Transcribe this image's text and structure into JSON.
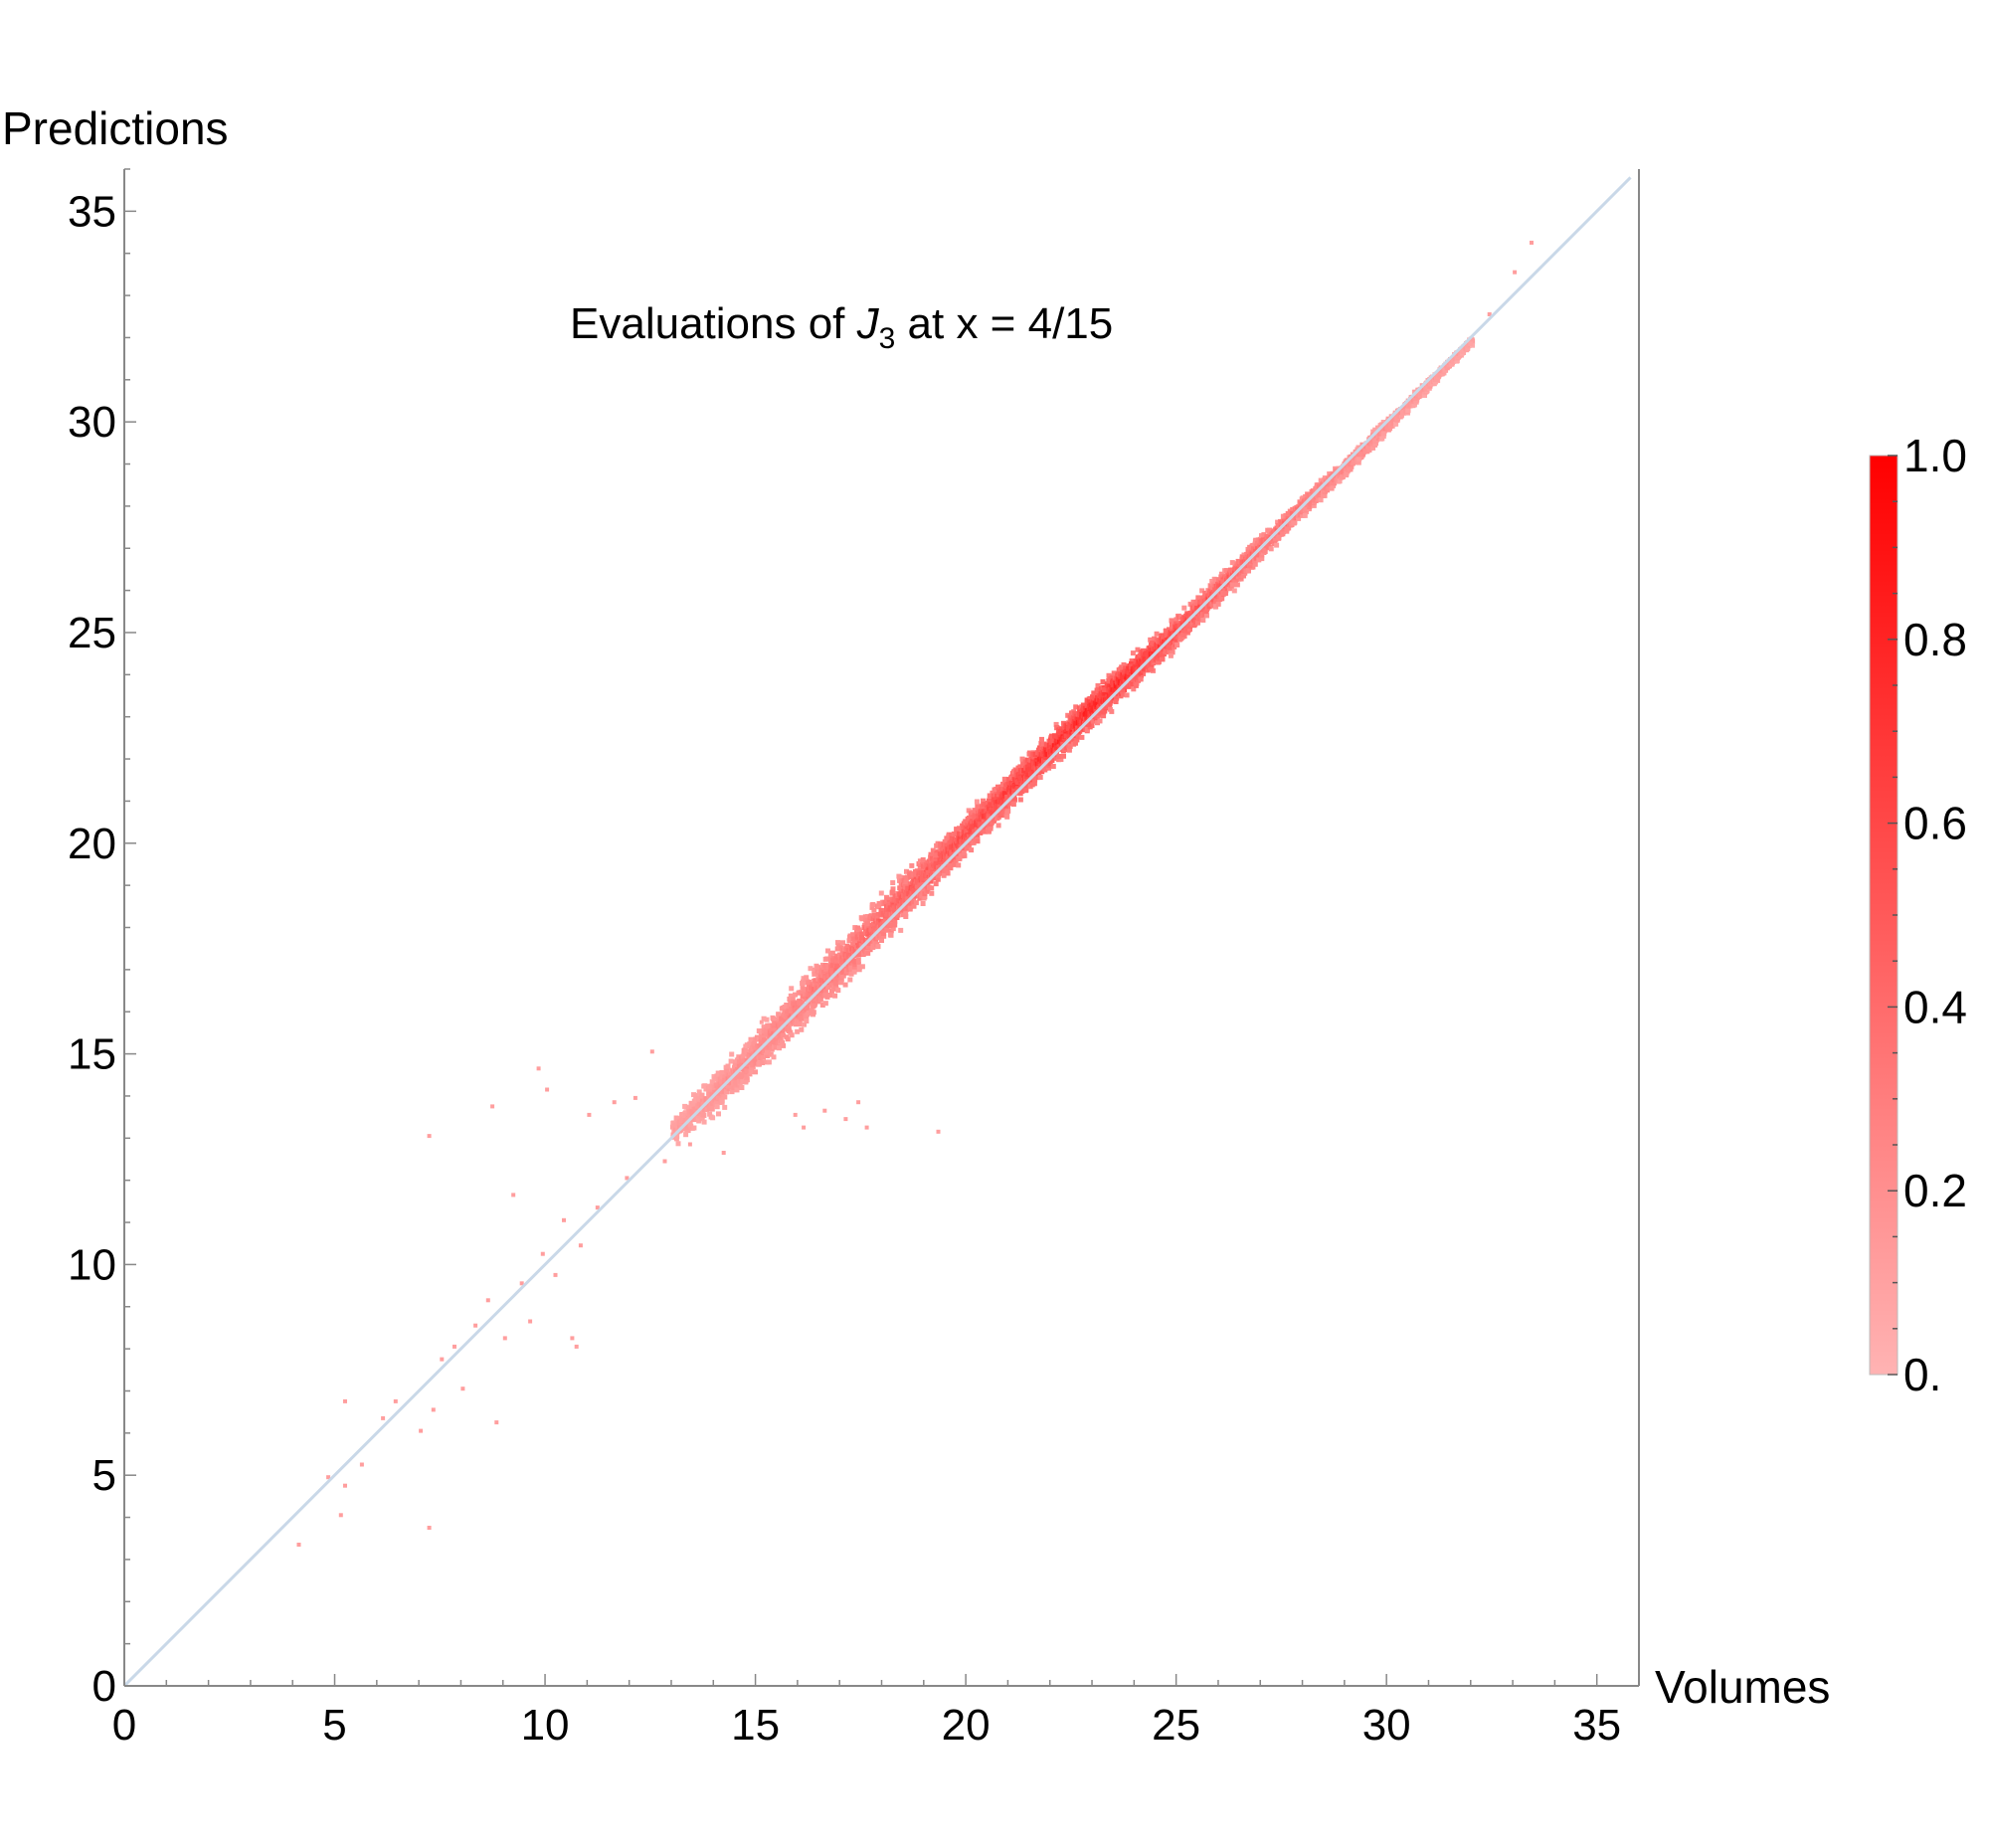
{
  "chart_data": {
    "type": "heatmap",
    "title_parts": {
      "prefix": "Evaluations of ",
      "symbol": "J",
      "subscript": "3",
      "suffix": " at x = 4/15"
    },
    "xlabel": "Volumes",
    "ylabel": "Predictions",
    "xlim": [
      0,
      36
    ],
    "ylim": [
      0,
      36
    ],
    "xticks": [
      0,
      5,
      10,
      15,
      20,
      25,
      30,
      35
    ],
    "yticks": [
      0,
      5,
      10,
      15,
      20,
      25,
      30,
      35
    ],
    "xtick_labels": [
      "0",
      "5",
      "10",
      "15",
      "20",
      "25",
      "30",
      "35"
    ],
    "ytick_labels": [
      "0",
      "5",
      "10",
      "15",
      "20",
      "25",
      "30",
      "35"
    ],
    "reference_line": {
      "x": [
        0,
        35.8
      ],
      "y": [
        0,
        35.8
      ],
      "color": "#c9d8e8"
    },
    "colorbar": {
      "range": [
        0,
        1
      ],
      "ticks": [
        0,
        0.2,
        0.4,
        0.6,
        0.8,
        1.0
      ],
      "tick_labels": [
        "0.",
        "0.2",
        "0.4",
        "0.6",
        "0.8",
        "1.0"
      ],
      "color_low": "#ffb3b3",
      "color_high": "#ff0000"
    },
    "density_band": [
      {
        "x": 13.0,
        "y": 13.2,
        "width": 0.5,
        "density": 0.15
      },
      {
        "x": 14.0,
        "y": 14.1,
        "width": 0.6,
        "density": 0.22
      },
      {
        "x": 15.0,
        "y": 15.1,
        "width": 0.7,
        "density": 0.28
      },
      {
        "x": 16.0,
        "y": 16.2,
        "width": 0.75,
        "density": 0.35
      },
      {
        "x": 17.0,
        "y": 17.2,
        "width": 0.75,
        "density": 0.42
      },
      {
        "x": 18.0,
        "y": 18.3,
        "width": 0.75,
        "density": 0.5
      },
      {
        "x": 19.0,
        "y": 19.3,
        "width": 0.7,
        "density": 0.58
      },
      {
        "x": 20.0,
        "y": 20.3,
        "width": 0.65,
        "density": 0.66
      },
      {
        "x": 21.0,
        "y": 21.3,
        "width": 0.6,
        "density": 0.74
      },
      {
        "x": 22.0,
        "y": 22.3,
        "width": 0.55,
        "density": 0.85
      },
      {
        "x": 23.0,
        "y": 23.3,
        "width": 0.55,
        "density": 0.9
      },
      {
        "x": 24.0,
        "y": 24.2,
        "width": 0.5,
        "density": 0.85
      },
      {
        "x": 25.0,
        "y": 25.1,
        "width": 0.45,
        "density": 0.72
      },
      {
        "x": 26.0,
        "y": 26.1,
        "width": 0.4,
        "density": 0.6
      },
      {
        "x": 27.0,
        "y": 27.1,
        "width": 0.35,
        "density": 0.5
      },
      {
        "x": 28.0,
        "y": 28.1,
        "width": 0.3,
        "density": 0.42
      },
      {
        "x": 29.0,
        "y": 29.0,
        "width": 0.25,
        "density": 0.33
      },
      {
        "x": 30.0,
        "y": 30.0,
        "width": 0.2,
        "density": 0.25
      },
      {
        "x": 31.0,
        "y": 31.0,
        "width": 0.15,
        "density": 0.2
      },
      {
        "x": 32.0,
        "y": 32.0,
        "width": 0.1,
        "density": 0.15
      }
    ],
    "outliers": [
      [
        4.1,
        3.4
      ],
      [
        5.1,
        4.1
      ],
      [
        5.2,
        4.8
      ],
      [
        4.8,
        5.0
      ],
      [
        5.2,
        6.8
      ],
      [
        5.6,
        5.3
      ],
      [
        6.1,
        6.4
      ],
      [
        6.4,
        6.8
      ],
      [
        7.2,
        3.8
      ],
      [
        7.2,
        13.1
      ],
      [
        7.0,
        6.1
      ],
      [
        7.3,
        6.6
      ],
      [
        7.5,
        7.8
      ],
      [
        7.8,
        8.1
      ],
      [
        8.0,
        7.1
      ],
      [
        8.3,
        8.6
      ],
      [
        8.6,
        9.2
      ],
      [
        8.7,
        13.8
      ],
      [
        8.8,
        6.3
      ],
      [
        9.0,
        8.3
      ],
      [
        9.2,
        11.7
      ],
      [
        9.4,
        9.6
      ],
      [
        9.6,
        8.7
      ],
      [
        9.8,
        14.7
      ],
      [
        9.9,
        10.3
      ],
      [
        10.0,
        14.2
      ],
      [
        10.2,
        9.8
      ],
      [
        10.4,
        11.1
      ],
      [
        10.6,
        8.3
      ],
      [
        10.7,
        8.1
      ],
      [
        10.8,
        10.5
      ],
      [
        11.0,
        13.6
      ],
      [
        11.2,
        11.4
      ],
      [
        11.6,
        13.9
      ],
      [
        11.9,
        12.1
      ],
      [
        12.1,
        14.0
      ],
      [
        12.5,
        15.1
      ],
      [
        12.8,
        12.5
      ],
      [
        13.4,
        12.9
      ],
      [
        14.2,
        12.7
      ],
      [
        15.1,
        15.8
      ],
      [
        15.9,
        13.6
      ],
      [
        16.1,
        13.3
      ],
      [
        16.6,
        13.7
      ],
      [
        17.1,
        13.5
      ],
      [
        17.4,
        13.9
      ],
      [
        17.6,
        13.3
      ],
      [
        19.3,
        13.2
      ],
      [
        32.0,
        32.0
      ],
      [
        32.4,
        32.6
      ],
      [
        33.0,
        33.6
      ],
      [
        33.4,
        34.3
      ]
    ]
  }
}
